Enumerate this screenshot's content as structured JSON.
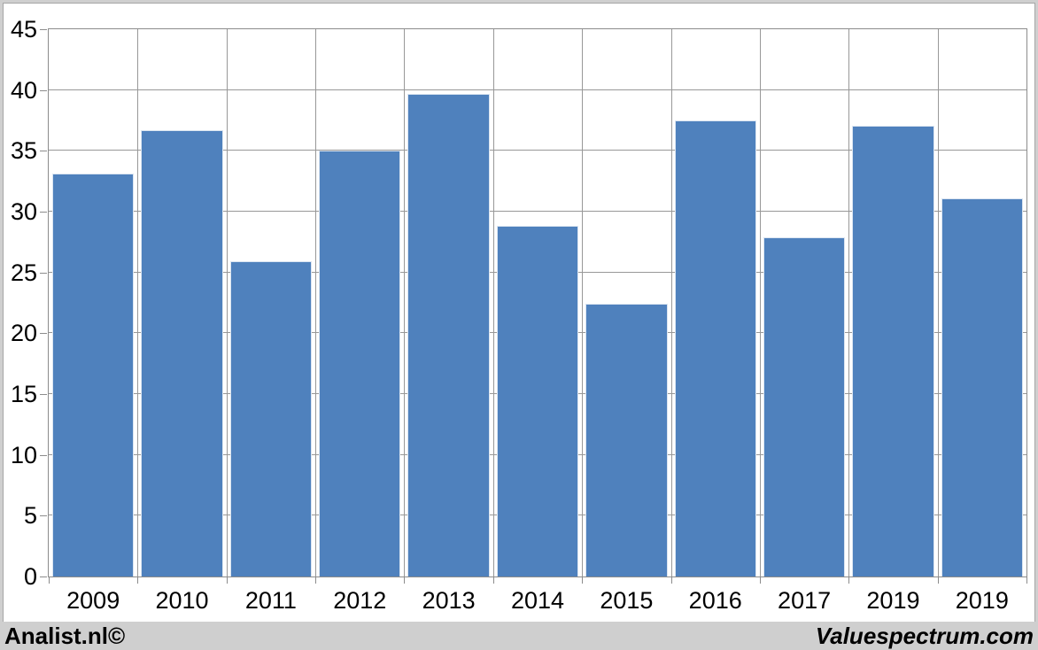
{
  "chart_data": {
    "type": "bar",
    "title": "",
    "xlabel": "",
    "ylabel": "",
    "categories": [
      "2009",
      "2010",
      "2011",
      "2012",
      "2013",
      "2014",
      "2015",
      "2016",
      "2017",
      "2019",
      "2019"
    ],
    "values": [
      33.1,
      36.7,
      25.9,
      35.0,
      39.7,
      28.8,
      22.4,
      37.5,
      27.9,
      37.1,
      31.1
    ],
    "ylim": [
      0,
      45
    ],
    "yticks": [
      0,
      5,
      10,
      15,
      20,
      25,
      30,
      35,
      40,
      45
    ],
    "grid": true,
    "legend_position": "none",
    "colors": {
      "bar_fill": "#4f81bd",
      "bar_edge": "#dbe5f1",
      "gridline": "#989898",
      "plot_border": "#8c8c8c",
      "panel_background": "#ffffff",
      "panel_border": "#a6a6a6",
      "page_background": "#cfcfcf",
      "label_text": "#000000"
    }
  },
  "footer": {
    "left": "Analist.nl©",
    "right": "Valuespectrum.com"
  }
}
